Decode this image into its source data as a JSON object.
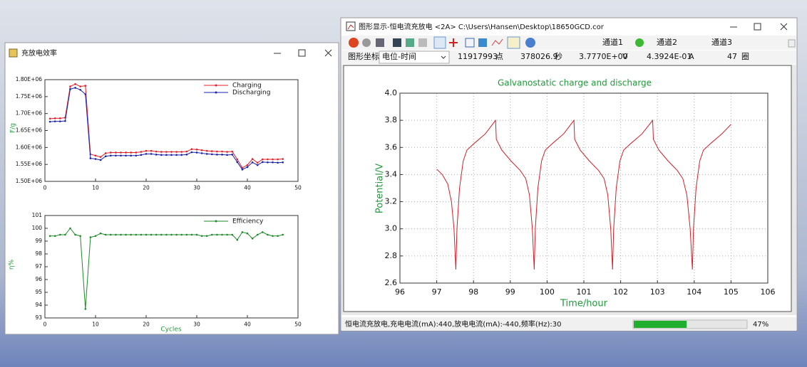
{
  "left_window": {
    "title": "充放电效率",
    "charts": [
      {
        "type": "line",
        "ylabel": "F/g",
        "legend": "upper right",
        "grid": false,
        "xlim": [
          0,
          50
        ],
        "xticks": [
          0,
          10,
          20,
          30,
          40,
          50
        ],
        "ylim": [
          1500000,
          1800000
        ],
        "yticks": [
          {
            "value": 1500000,
            "label": "1.50E+06"
          },
          {
            "value": 1550000,
            "label": "1.55E+06"
          },
          {
            "value": 1600000,
            "label": "1.60E+06"
          },
          {
            "value": 1650000,
            "label": "1.65E+06"
          },
          {
            "value": 1700000,
            "label": "1.70E+06"
          },
          {
            "value": 1750000,
            "label": "1.75E+06"
          },
          {
            "value": 1800000,
            "label": "1.80E+06"
          }
        ],
        "x": [
          1,
          2,
          3,
          4,
          5,
          6,
          7,
          8,
          9,
          10,
          11,
          12,
          13,
          14,
          15,
          16,
          17,
          18,
          19,
          20,
          21,
          22,
          23,
          24,
          25,
          26,
          27,
          28,
          29,
          30,
          31,
          32,
          33,
          34,
          35,
          36,
          37,
          38,
          39,
          40,
          41,
          42,
          43,
          44,
          45,
          46,
          47
        ],
        "series": [
          {
            "name": "Charging",
            "color": "#e0202a",
            "marker": "o",
            "values": [
              1685000,
              1686000,
              1686000,
              1688000,
              1780000,
              1787000,
              1780000,
              1782000,
              1580000,
              1576000,
              1572000,
              1583000,
              1585000,
              1585000,
              1585000,
              1585000,
              1585000,
              1585000,
              1587000,
              1590000,
              1590000,
              1588000,
              1587000,
              1587000,
              1587000,
              1587000,
              1587000,
              1588000,
              1595000,
              1594000,
              1592000,
              1590000,
              1589000,
              1588000,
              1588000,
              1587000,
              1588000,
              1565000,
              1540000,
              1548000,
              1566000,
              1555000,
              1565000,
              1565000,
              1565000,
              1565000,
              1566000
            ]
          },
          {
            "name": "Discharging",
            "color": "#1a22a8",
            "marker": "o",
            "values": [
              1676000,
              1677000,
              1677000,
              1678000,
              1772000,
              1776000,
              1770000,
              1757000,
              1568000,
              1566000,
              1563000,
              1574000,
              1576000,
              1576000,
              1576000,
              1576000,
              1576000,
              1576000,
              1578000,
              1581000,
              1581000,
              1579000,
              1578000,
              1578000,
              1578000,
              1578000,
              1578000,
              1579000,
              1586000,
              1585000,
              1583000,
              1581000,
              1580000,
              1579000,
              1579000,
              1578000,
              1579000,
              1557000,
              1535000,
              1542000,
              1556000,
              1548000,
              1557000,
              1556000,
              1556000,
              1555000,
              1556000
            ]
          }
        ]
      },
      {
        "type": "line",
        "ylabel": "η%",
        "xlabel": "Cycles",
        "legend": "upper right",
        "grid": false,
        "xlim": [
          0,
          50
        ],
        "xticks": [
          0,
          10,
          20,
          30,
          40,
          50
        ],
        "ylim": [
          93,
          101
        ],
        "yticks": [
          93,
          94,
          95,
          96,
          97,
          98,
          99,
          100,
          101
        ],
        "x": [
          1,
          2,
          3,
          4,
          5,
          6,
          7,
          8,
          9,
          10,
          11,
          12,
          13,
          14,
          15,
          16,
          17,
          18,
          19,
          20,
          21,
          22,
          23,
          24,
          25,
          26,
          27,
          28,
          29,
          30,
          31,
          32,
          33,
          34,
          35,
          36,
          37,
          38,
          39,
          40,
          41,
          42,
          43,
          44,
          45,
          46,
          47
        ],
        "series": [
          {
            "name": "Efficiency",
            "color": "#1e8a2a",
            "marker": "o",
            "values": [
              99.4,
              99.4,
              99.5,
              99.5,
              100.0,
              99.5,
              99.4,
              93.7,
              99.3,
              99.4,
              99.6,
              99.5,
              99.5,
              99.5,
              99.5,
              99.5,
              99.5,
              99.5,
              99.5,
              99.5,
              99.5,
              99.5,
              99.5,
              99.5,
              99.5,
              99.5,
              99.5,
              99.5,
              99.5,
              99.5,
              99.4,
              99.4,
              99.5,
              99.5,
              99.5,
              99.5,
              99.5,
              99.1,
              99.7,
              99.6,
              99.2,
              99.5,
              99.7,
              99.5,
              99.4,
              99.4,
              99.5
            ]
          }
        ]
      }
    ]
  },
  "right_window": {
    "title": "图形显示-恒电流充放电 <2A> C:\\Users\\Hansen\\Desktop\\18650GCD.cor",
    "channels": [
      "通道1",
      "通道2",
      "通道3"
    ],
    "info": {
      "label": "图形坐标",
      "mode": "电位-时间",
      "items": [
        {
          "value": "11917993",
          "unit": "点"
        },
        {
          "value": "378026.9",
          "unit": "秒"
        },
        {
          "value": "3.7770E+00",
          "unit": "V"
        },
        {
          "value": "4.3924E-01",
          "unit": "A"
        },
        {
          "value": "47",
          "unit": "圈"
        }
      ]
    },
    "chart": {
      "type": "line",
      "title": "Galvanostatic charge and discharge",
      "xlabel": "Time/hour",
      "ylabel": "Potential/V",
      "grid": true,
      "xlim": [
        96,
        106
      ],
      "xticks": [
        96,
        97,
        98,
        99,
        100,
        101,
        102,
        103,
        104,
        105,
        106
      ],
      "ylim": [
        2.6,
        4.0
      ],
      "yticks": [
        2.6,
        2.8,
        {
          "value": 3,
          "label": "3.0"
        },
        3.2,
        3.4,
        3.6,
        3.8,
        {
          "value": 4,
          "label": "4.0"
        }
      ],
      "x": [
        97.0,
        97.15,
        97.3,
        97.4,
        97.47,
        97.52,
        97.55,
        97.62,
        97.72,
        97.82,
        98.02,
        98.32,
        98.6,
        98.62,
        98.77,
        99.02,
        99.27,
        99.42,
        99.52,
        99.6,
        99.65,
        99.68,
        99.75,
        99.85,
        99.95,
        100.15,
        100.45,
        100.73,
        100.75,
        100.9,
        101.15,
        101.4,
        101.55,
        101.65,
        101.73,
        101.78,
        101.81,
        101.88,
        101.98,
        102.08,
        102.28,
        102.58,
        102.87,
        102.89,
        103.04,
        103.29,
        103.54,
        103.69,
        103.8,
        103.89,
        103.95,
        103.98,
        104.05,
        104.15,
        104.25,
        104.45,
        104.75,
        105.0
      ],
      "series": [
        {
          "color": "#d0202a",
          "values": [
            3.44,
            3.4,
            3.33,
            3.2,
            3.0,
            2.7,
            3.0,
            3.3,
            3.5,
            3.58,
            3.63,
            3.7,
            3.8,
            3.66,
            3.58,
            3.5,
            3.43,
            3.37,
            3.25,
            3.0,
            2.7,
            3.0,
            3.3,
            3.5,
            3.58,
            3.63,
            3.7,
            3.8,
            3.66,
            3.58,
            3.5,
            3.43,
            3.37,
            3.25,
            3.0,
            2.7,
            3.0,
            3.3,
            3.5,
            3.58,
            3.63,
            3.7,
            3.8,
            3.66,
            3.58,
            3.5,
            3.43,
            3.37,
            3.25,
            3.0,
            2.7,
            3.0,
            3.3,
            3.5,
            3.58,
            3.63,
            3.7,
            3.77
          ]
        }
      ]
    },
    "status": {
      "text": "恒电流充放电,充电电流(mA):440,放电电流(mA):-440,频率(Hz):30",
      "progress": {
        "value": 47,
        "label": "47%"
      }
    }
  }
}
